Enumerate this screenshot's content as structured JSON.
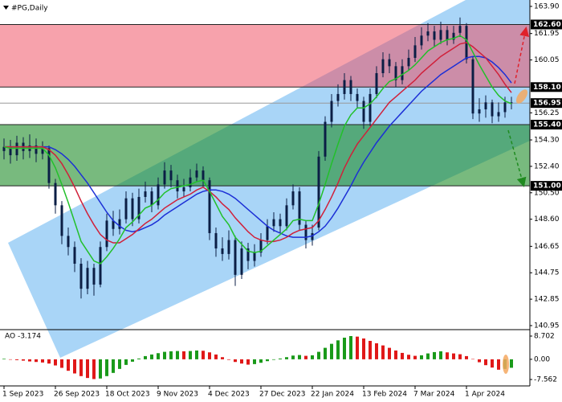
{
  "chart_data": [
    {
      "type": "candlestick",
      "title": "#PG,Daily",
      "categories": [
        "1 Sep 2023",
        null,
        null,
        null,
        null,
        null,
        null,
        null,
        "26 Sep 2023",
        null,
        null,
        null,
        null,
        null,
        null,
        null,
        "18 Oct 2023",
        null,
        null,
        null,
        null,
        null,
        null,
        null,
        "9 Nov 2023",
        null,
        null,
        null,
        null,
        null,
        null,
        null,
        "4 Dec 2023",
        null,
        null,
        null,
        null,
        null,
        null,
        null,
        "27 Dec 2023",
        null,
        null,
        null,
        null,
        null,
        null,
        null,
        "22 Jan 2024",
        null,
        null,
        null,
        null,
        null,
        null,
        null,
        "13 Feb 2024",
        null,
        null,
        null,
        null,
        null,
        null,
        null,
        "7 Mar 2024",
        null,
        null,
        null,
        null,
        null,
        null,
        null,
        "1 Apr 2024",
        null,
        null,
        null,
        null,
        null,
        null,
        null
      ],
      "open": [
        153.5,
        153.8,
        153.2,
        154.1,
        153.5,
        153.9,
        153.3,
        153.7,
        151.2,
        149.6,
        147.4,
        146.6,
        145.4,
        143.6,
        145.1,
        143.9,
        146.6,
        148.5,
        147.9,
        148.6,
        150.1,
        148.6,
        150.2,
        150.6,
        149.6,
        151.1,
        152.1,
        151.4,
        150.6,
        150.9,
        151.6,
        152.1,
        151.4,
        147.6,
        146.5,
        146.1,
        147.1,
        144.6,
        146.5,
        145.6,
        146.2,
        147.1,
        148.1,
        148.6,
        148.1,
        149.6,
        150.6,
        148.2,
        147.1,
        148.0,
        153.1,
        155.6,
        157.1,
        157.6,
        158.6,
        157.6,
        157.1,
        155.6,
        157.6,
        159.1,
        160.1,
        159.6,
        158.6,
        159.6,
        160.2,
        161.1,
        161.8,
        162.1,
        161.5,
        162.2,
        161.5,
        162.0,
        162.5,
        160.1,
        156.2,
        156.5,
        157.0,
        156.0,
        156.3,
        157.0
      ],
      "high": [
        154.4,
        154.3,
        154.6,
        154.5,
        154.7,
        154.4,
        154.2,
        153.9,
        151.5,
        149.9,
        148.0,
        147.0,
        145.8,
        145.6,
        145.4,
        147.0,
        149.0,
        149.2,
        149.3,
        150.6,
        150.5,
        150.8,
        151.3,
        150.9,
        151.6,
        152.7,
        152.5,
        151.8,
        151.5,
        152.2,
        152.6,
        152.4,
        151.6,
        148.0,
        147.3,
        147.8,
        147.4,
        147.0,
        146.9,
        146.8,
        147.6,
        148.6,
        149.1,
        149.0,
        150.1,
        151.1,
        150.9,
        148.5,
        148.2,
        153.5,
        156.0,
        157.6,
        158.3,
        159.1,
        158.9,
        158.0,
        157.4,
        158.0,
        159.6,
        160.6,
        160.5,
        159.9,
        160.1,
        160.8,
        161.7,
        162.4,
        162.7,
        162.5,
        162.8,
        162.5,
        162.5,
        163.1,
        162.7,
        160.3,
        157.3,
        157.5,
        157.2,
        157.0,
        157.4,
        157.4
      ],
      "low": [
        152.9,
        152.6,
        152.8,
        152.9,
        153.0,
        152.7,
        152.9,
        150.8,
        149.0,
        146.8,
        146.0,
        144.8,
        142.9,
        143.2,
        143.1,
        143.7,
        146.3,
        147.4,
        147.5,
        148.3,
        148.1,
        148.3,
        149.8,
        149.1,
        149.3,
        150.8,
        150.9,
        150.1,
        150.2,
        150.6,
        151.3,
        150.9,
        147.1,
        145.9,
        145.6,
        145.7,
        143.8,
        144.3,
        145.0,
        145.2,
        145.9,
        146.8,
        147.7,
        147.6,
        147.8,
        149.3,
        147.8,
        146.5,
        146.7,
        147.8,
        152.8,
        155.2,
        156.7,
        157.2,
        157.1,
        156.6,
        155.1,
        155.3,
        157.3,
        158.8,
        159.1,
        158.1,
        158.3,
        159.3,
        159.9,
        160.8,
        161.4,
        161.0,
        161.2,
        161.1,
        161.2,
        161.7,
        159.8,
        155.8,
        155.6,
        155.9,
        155.5,
        155.6,
        155.9,
        156.5
      ],
      "close": [
        153.8,
        153.2,
        154.1,
        153.5,
        153.9,
        153.3,
        153.7,
        151.2,
        149.6,
        147.4,
        146.6,
        145.4,
        143.6,
        145.1,
        143.9,
        146.6,
        148.5,
        147.9,
        148.6,
        150.1,
        148.6,
        150.2,
        150.6,
        149.6,
        151.1,
        152.1,
        151.4,
        150.6,
        150.9,
        151.6,
        152.1,
        151.4,
        147.6,
        146.5,
        146.1,
        147.1,
        144.6,
        146.5,
        145.6,
        146.2,
        147.1,
        148.1,
        148.6,
        148.1,
        149.6,
        150.6,
        148.2,
        147.1,
        147.6,
        153.1,
        155.6,
        157.1,
        157.6,
        158.6,
        157.6,
        157.1,
        155.6,
        157.6,
        159.1,
        160.1,
        159.6,
        158.6,
        159.6,
        160.2,
        161.1,
        161.8,
        162.1,
        161.5,
        162.2,
        161.5,
        162.0,
        162.5,
        160.1,
        156.2,
        156.5,
        157.0,
        156.0,
        156.3,
        157.0,
        156.95
      ],
      "candle_color": "#0b1e45",
      "series": [
        {
          "color": "#1c2fd6",
          "values": [
            153.8,
            153.8,
            153.8,
            153.8,
            153.8,
            153.8,
            153.8,
            153.8,
            153.6,
            153.3,
            152.9,
            152.4,
            151.8,
            151.2,
            150.5,
            149.8,
            149.1,
            148.5,
            148.1,
            147.8,
            147.7,
            147.8,
            148.0,
            148.2,
            148.5,
            148.9,
            149.2,
            149.5,
            149.8,
            150.1,
            150.4,
            150.6,
            150.7,
            150.7,
            150.6,
            150.4,
            150.1,
            149.7,
            149.3,
            148.9,
            148.5,
            148.1,
            147.8,
            147.6,
            147.4,
            147.3,
            147.3,
            147.3,
            147.4,
            147.7,
            148.1,
            148.7,
            149.4,
            150.2,
            151.0,
            151.9,
            152.7,
            153.4,
            154.1,
            154.7,
            155.3,
            155.8,
            156.3,
            156.8,
            157.3,
            157.8,
            158.2,
            158.6,
            159.0,
            159.3,
            159.6,
            159.9,
            160.2,
            160.3,
            160.3,
            160.2,
            159.9,
            159.5,
            159.0,
            158.4
          ]
        },
        {
          "color": "#d0203a",
          "values": [
            153.8,
            153.8,
            153.8,
            153.8,
            153.8,
            153.8,
            153.8,
            153.6,
            153.2,
            152.6,
            151.8,
            150.9,
            149.9,
            149.0,
            148.2,
            147.5,
            147.1,
            146.9,
            146.9,
            147.2,
            147.5,
            147.9,
            148.3,
            148.6,
            149.0,
            149.4,
            149.7,
            150.0,
            150.2,
            150.4,
            150.7,
            150.9,
            150.6,
            150.2,
            149.7,
            149.3,
            148.7,
            148.2,
            147.7,
            147.3,
            147.1,
            147.0,
            147.0,
            147.1,
            147.3,
            147.6,
            147.8,
            147.9,
            148.0,
            148.5,
            149.3,
            150.2,
            151.2,
            152.3,
            153.2,
            154.0,
            154.6,
            155.2,
            155.8,
            156.4,
            157.0,
            157.4,
            157.8,
            158.2,
            158.6,
            159.1,
            159.5,
            159.9,
            160.3,
            160.6,
            160.9,
            161.2,
            161.3,
            161.0,
            160.6,
            160.2,
            159.6,
            159.0,
            158.3,
            157.7
          ]
        },
        {
          "color": "#22c02a",
          "values": [
            153.8,
            153.7,
            153.7,
            153.7,
            153.7,
            153.7,
            153.7,
            153.2,
            152.3,
            151.1,
            149.8,
            148.4,
            147.0,
            146.3,
            145.6,
            145.4,
            145.9,
            146.5,
            147.2,
            148.0,
            148.4,
            148.9,
            149.4,
            149.6,
            150.0,
            150.5,
            150.8,
            150.9,
            151.0,
            151.1,
            151.3,
            151.4,
            150.6,
            149.7,
            148.8,
            148.2,
            147.3,
            146.8,
            146.3,
            146.2,
            146.3,
            146.7,
            147.1,
            147.5,
            147.9,
            148.5,
            148.6,
            148.5,
            148.5,
            149.7,
            151.1,
            152.6,
            154.0,
            155.3,
            156.1,
            156.6,
            156.6,
            156.9,
            157.4,
            158.0,
            158.5,
            158.7,
            159.0,
            159.3,
            159.7,
            160.2,
            160.7,
            161.0,
            161.3,
            161.5,
            161.6,
            161.8,
            161.5,
            160.6,
            159.7,
            158.9,
            158.1,
            157.5,
            157.1,
            156.9
          ]
        }
      ],
      "ylim": [
        140.66,
        164.36
      ],
      "yticks": [
        {
          "value": 163.9,
          "label": "163.90"
        },
        161.95,
        160.05,
        156.25,
        {
          "value": 154.3,
          "label": "154.30"
        },
        {
          "value": 152.4,
          "label": "152.40"
        },
        {
          "value": 150.5,
          "label": "150.50"
        },
        {
          "value": 148.6,
          "label": "148.60"
        },
        146.65,
        144.75,
        142.85,
        140.95
      ],
      "levels": [
        {
          "value": 162.6,
          "label": "162.60"
        },
        {
          "value": 158.1,
          "label": "158.10"
        },
        156.95,
        {
          "value": 155.4,
          "label": "155.40"
        },
        {
          "value": 151,
          "label": "151.00"
        }
      ]
    },
    {
      "type": "bar",
      "title": "AO -3.174",
      "values": [
        0.2,
        0.0,
        -0.3,
        -0.5,
        -0.8,
        -1.0,
        -1.2,
        -1.6,
        -2.3,
        -3.2,
        -4.3,
        -5.3,
        -6.3,
        -7.0,
        -7.4,
        -7.2,
        -6.3,
        -5.1,
        -3.6,
        -2.1,
        -0.9,
        0.3,
        1.2,
        1.8,
        2.3,
        2.8,
        3.0,
        3.1,
        3.0,
        3.1,
        3.3,
        3.2,
        2.6,
        1.8,
        0.8,
        -0.2,
        -1.0,
        -1.6,
        -2.0,
        -1.8,
        -1.3,
        -0.7,
        -0.2,
        0.3,
        0.8,
        1.4,
        1.6,
        1.3,
        1.5,
        2.8,
        4.3,
        5.8,
        7.1,
        8.1,
        8.7,
        8.5,
        7.8,
        6.9,
        6.0,
        5.2,
        4.3,
        3.3,
        2.4,
        1.7,
        1.3,
        1.5,
        2.2,
        2.7,
        3.0,
        2.6,
        2.2,
        1.9,
        1.2,
        0.1,
        -1.1,
        -2.2,
        -3.1,
        -3.9,
        -3.6,
        -3.174
      ],
      "up_color": "#1a9a1a",
      "down_color": "#e01818",
      "ylim": [
        -9.97,
        11.11
      ],
      "yticks": [
        8.702,
        {
          "value": 0,
          "label": "0.00"
        },
        -7.562
      ]
    }
  ]
}
